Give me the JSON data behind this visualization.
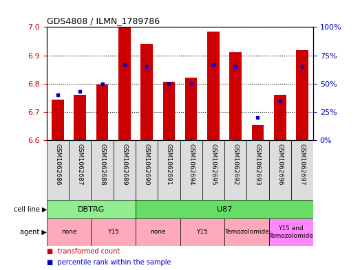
{
  "title": "GDS4808 / ILMN_1789786",
  "samples": [
    "GSM1062686",
    "GSM1062687",
    "GSM1062688",
    "GSM1062689",
    "GSM1062690",
    "GSM1062691",
    "GSM1062694",
    "GSM1062695",
    "GSM1062692",
    "GSM1062693",
    "GSM1062696",
    "GSM1062697"
  ],
  "red_values": [
    6.745,
    6.762,
    6.797,
    7.0,
    6.94,
    6.808,
    6.822,
    6.984,
    6.912,
    6.655,
    6.762,
    6.918
  ],
  "blue_percentiles": [
    40,
    43,
    50,
    67,
    65,
    50,
    50,
    67,
    65,
    20,
    35,
    65
  ],
  "ymin": 6.6,
  "ymax": 7.0,
  "yticks": [
    6.6,
    6.7,
    6.8,
    6.9,
    7.0
  ],
  "right_yticks": [
    0,
    25,
    50,
    75,
    100
  ],
  "right_ylabels": [
    "0%",
    "25%",
    "50%",
    "75%",
    "100%"
  ],
  "cell_line_groups": [
    {
      "label": "DBTRG",
      "start": 0,
      "end": 3,
      "color": "#90EE90"
    },
    {
      "label": "U87",
      "start": 4,
      "end": 11,
      "color": "#66DD66"
    }
  ],
  "agent_groups": [
    {
      "label": "none",
      "start": 0,
      "end": 1,
      "color": "#FFAABB"
    },
    {
      "label": "Y15",
      "start": 2,
      "end": 3,
      "color": "#FFAABB"
    },
    {
      "label": "none",
      "start": 4,
      "end": 5,
      "color": "#FFAABB"
    },
    {
      "label": "Y15",
      "start": 6,
      "end": 7,
      "color": "#FFAABB"
    },
    {
      "label": "Temozolomide",
      "start": 8,
      "end": 9,
      "color": "#FFAABB"
    },
    {
      "label": "Y15 and\nTemozolomide",
      "start": 10,
      "end": 11,
      "color": "#FF88FF"
    }
  ],
  "bar_color": "#CC0000",
  "dot_color": "#0000CC",
  "bar_bottom": 6.6,
  "background_color": "#FFFFFF",
  "tick_color_left": "#CC0000",
  "tick_color_right": "#0000CC"
}
